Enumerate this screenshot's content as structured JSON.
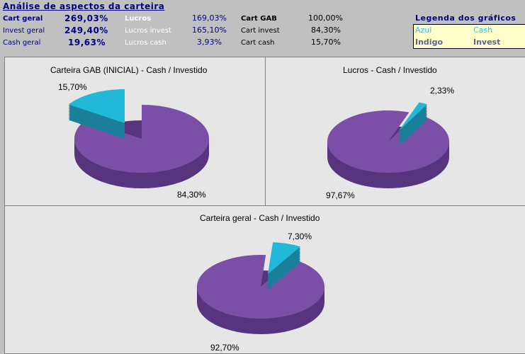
{
  "header": {
    "title": "Análise de aspectos da carteira"
  },
  "summary": {
    "col1": [
      {
        "label": "Cart geral",
        "value": "269,03%"
      },
      {
        "label": "Invest geral",
        "value": "249,40%"
      },
      {
        "label": "Cash geral",
        "value": "19,63%"
      }
    ],
    "col2": [
      {
        "label": "Lucros",
        "value": "169,03%"
      },
      {
        "label": "Lucros invest",
        "value": "165,10%"
      },
      {
        "label": "Lucros cash",
        "value": "3,93%"
      }
    ],
    "col3": [
      {
        "label": "Cart GAB",
        "value": "100,00%"
      },
      {
        "label": "Cart invest",
        "value": "84,30%"
      },
      {
        "label": "Cart cash",
        "value": "15,70%"
      }
    ]
  },
  "legend": {
    "title": "Legenda dos gráficos",
    "rows": [
      {
        "color_name": "Azul",
        "meaning": "Cash"
      },
      {
        "color_name": "Indigo",
        "meaning": "Invest"
      }
    ]
  },
  "colors": {
    "cash": "#22b8d8",
    "invest": "#7b4fa8",
    "invest_side": "#56357e",
    "cash_side": "#1a7f9a"
  },
  "chart_data": [
    {
      "type": "pie",
      "title": "Carteira GAB (INICIAL) - Cash / Investido",
      "slices": [
        {
          "label": "Cash",
          "value": 15.7,
          "text": "15,70%"
        },
        {
          "label": "Invest",
          "value": 84.3,
          "text": "84,30%"
        }
      ]
    },
    {
      "type": "pie",
      "title": "Lucros - Cash / Investido",
      "slices": [
        {
          "label": "Cash",
          "value": 2.33,
          "text": "2,33%"
        },
        {
          "label": "Invest",
          "value": 97.67,
          "text": "97,67%"
        }
      ]
    },
    {
      "type": "pie",
      "title": "Carteira geral - Cash / Investido",
      "slices": [
        {
          "label": "Cash",
          "value": 7.3,
          "text": "7,30%"
        },
        {
          "label": "Invest",
          "value": 92.7,
          "text": "92,70%"
        }
      ]
    }
  ]
}
